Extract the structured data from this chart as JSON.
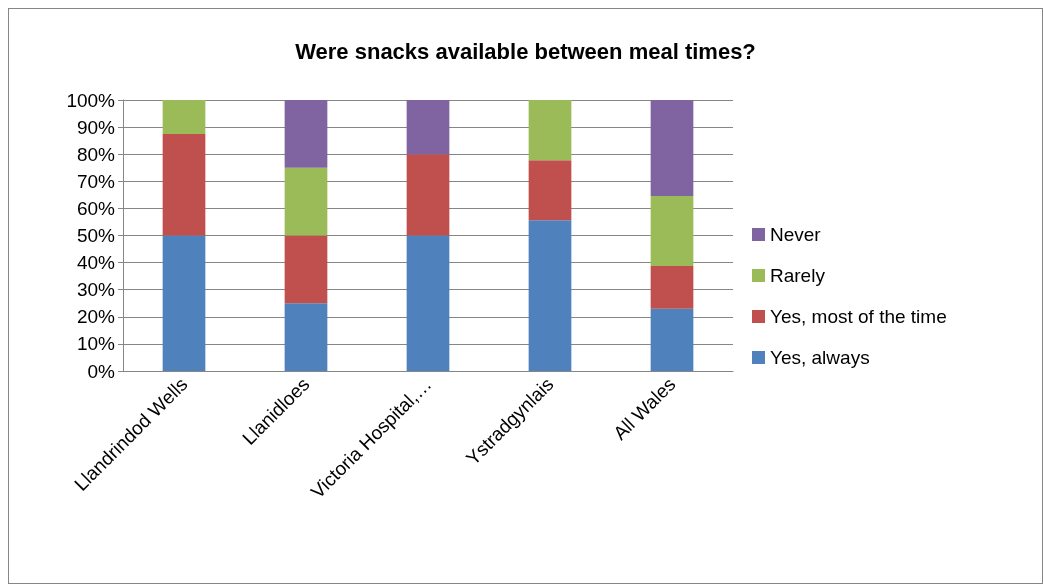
{
  "chart_data": {
    "type": "bar",
    "stacked": true,
    "title": "Were snacks available between meal times?",
    "categories": [
      "Llandrindod Wells",
      "Llanidloes",
      "Victoria Hospital,…",
      "Ystradgynlais",
      "All Wales"
    ],
    "series": [
      {
        "name": "Yes, always",
        "color": "#4f81bd",
        "values": [
          50,
          25,
          50,
          55.6,
          23
        ]
      },
      {
        "name": "Yes, most of the time",
        "color": "#c0504d",
        "values": [
          37.5,
          25,
          30,
          22.2,
          15.7
        ]
      },
      {
        "name": "Rarely",
        "color": "#9bbb59",
        "values": [
          12.5,
          25,
          0,
          22.2,
          25.9
        ]
      },
      {
        "name": "Never",
        "color": "#8064a2",
        "values": [
          0,
          25,
          20,
          0,
          35.4
        ]
      }
    ],
    "ylim": [
      0,
      100
    ],
    "yticks": [
      {
        "value": 0,
        "label": "0%"
      },
      {
        "value": 10,
        "label": "10%"
      },
      {
        "value": 20,
        "label": "20%"
      },
      {
        "value": 30,
        "label": "30%"
      },
      {
        "value": 40,
        "label": "40%"
      },
      {
        "value": 50,
        "label": "50%"
      },
      {
        "value": 60,
        "label": "60%"
      },
      {
        "value": 70,
        "label": "70%"
      },
      {
        "value": 80,
        "label": "80%"
      },
      {
        "value": 90,
        "label": "90%"
      },
      {
        "value": 100,
        "label": "100%"
      }
    ],
    "grid": "y",
    "legend": "right"
  }
}
